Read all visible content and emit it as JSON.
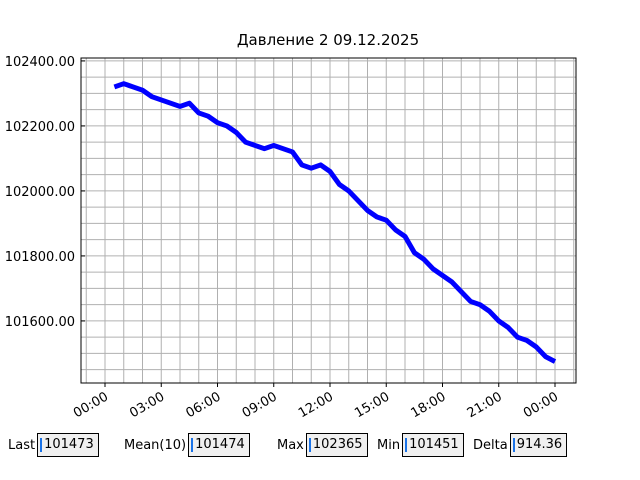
{
  "chart_data": {
    "type": "line",
    "title": "Давление 2 09.12.2025",
    "x": [
      0.5,
      1,
      1.5,
      2,
      2.5,
      3,
      3.5,
      4,
      4.5,
      5,
      5.5,
      6,
      6.5,
      7,
      7.5,
      8,
      8.5,
      9,
      9.5,
      10,
      10.5,
      11,
      11.5,
      12,
      12.5,
      13,
      13.5,
      14,
      14.5,
      15,
      15.5,
      16,
      16.5,
      17,
      17.5,
      18,
      18.5,
      19,
      19.5,
      20,
      20.5,
      21,
      21.5,
      22,
      22.5,
      23,
      23.5,
      24
    ],
    "series": [
      {
        "name": "Давление 2",
        "color": "#0000ff",
        "values": [
          102320,
          102330,
          102320,
          102310,
          102290,
          102280,
          102270,
          102260,
          102270,
          102240,
          102230,
          102210,
          102200,
          102180,
          102150,
          102140,
          102130,
          102140,
          102130,
          102120,
          102080,
          102070,
          102080,
          102060,
          102020,
          102000,
          101970,
          101940,
          101920,
          101910,
          101880,
          101860,
          101810,
          101790,
          101760,
          101740,
          101720,
          101690,
          101660,
          101650,
          101630,
          101600,
          101580,
          101550,
          101540,
          101520,
          101490,
          101475
        ]
      }
    ],
    "xlim": [
      -1.28,
      25.12
    ],
    "ylim": [
      101409,
      102409
    ],
    "xticks": [
      {
        "value": 0,
        "label": "00:00"
      },
      {
        "value": 3,
        "label": "03:00"
      },
      {
        "value": 6,
        "label": "06:00"
      },
      {
        "value": 9,
        "label": "09:00"
      },
      {
        "value": 12,
        "label": "12:00"
      },
      {
        "value": 15,
        "label": "15:00"
      },
      {
        "value": 18,
        "label": "18:00"
      },
      {
        "value": 21,
        "label": "21:00"
      },
      {
        "value": 24,
        "label": "00:00"
      }
    ],
    "yticks": [
      {
        "value": 101600,
        "label": "101600.00"
      },
      {
        "value": 101800,
        "label": "101800.00"
      },
      {
        "value": 102000,
        "label": "102000.00"
      },
      {
        "value": 102200,
        "label": "102200.00"
      },
      {
        "value": 102400,
        "label": "102400.00"
      }
    ],
    "minor_xticks": [
      -1,
      0,
      1,
      2,
      3,
      4,
      5,
      6,
      7,
      8,
      9,
      10,
      11,
      12,
      13,
      14,
      15,
      16,
      17,
      18,
      19,
      20,
      21,
      22,
      23,
      24,
      25
    ],
    "minor_yticks": [
      101450,
      101500,
      101550,
      101600,
      101650,
      101700,
      101750,
      101800,
      101850,
      101900,
      101950,
      102000,
      102050,
      102100,
      102150,
      102200,
      102250,
      102300,
      102350,
      102400
    ],
    "grid": true
  },
  "stats": [
    {
      "label": "Last",
      "value": "101473"
    },
    {
      "label": "Mean(10)",
      "value": "101474"
    },
    {
      "label": "Max",
      "value": "102365"
    },
    {
      "label": "Min",
      "value": "101451"
    },
    {
      "label": "Delta",
      "value": "914.36"
    }
  ]
}
